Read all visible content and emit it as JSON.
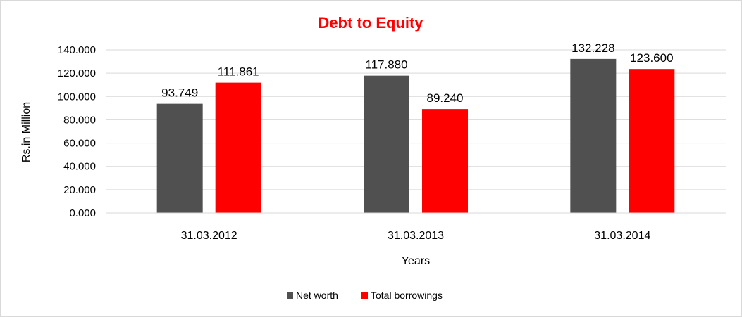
{
  "chart_data": {
    "type": "bar",
    "title": "Debt to Equity",
    "xlabel": "Years",
    "ylabel": "Rs.in Million",
    "categories": [
      "31.03.2012",
      "31.03.2013",
      "31.03.2014"
    ],
    "series": [
      {
        "name": "Net worth",
        "values": [
          93.749,
          117.88,
          132.228
        ],
        "labels": [
          "93.749",
          "117.880",
          "132.228"
        ],
        "color": "#505050"
      },
      {
        "name": "Total borrowings",
        "values": [
          111.861,
          89.24,
          123.6
        ],
        "labels": [
          "111.861",
          "89.240",
          "123.600"
        ],
        "color": "#ff0000"
      }
    ],
    "ylim": [
      0,
      140
    ],
    "yticks": [
      "0.000",
      "20.000",
      "40.000",
      "60.000",
      "80.000",
      "100.000",
      "120.000",
      "140.000"
    ],
    "grid": true,
    "legend": "bottom",
    "title_color": "#ff0000"
  }
}
